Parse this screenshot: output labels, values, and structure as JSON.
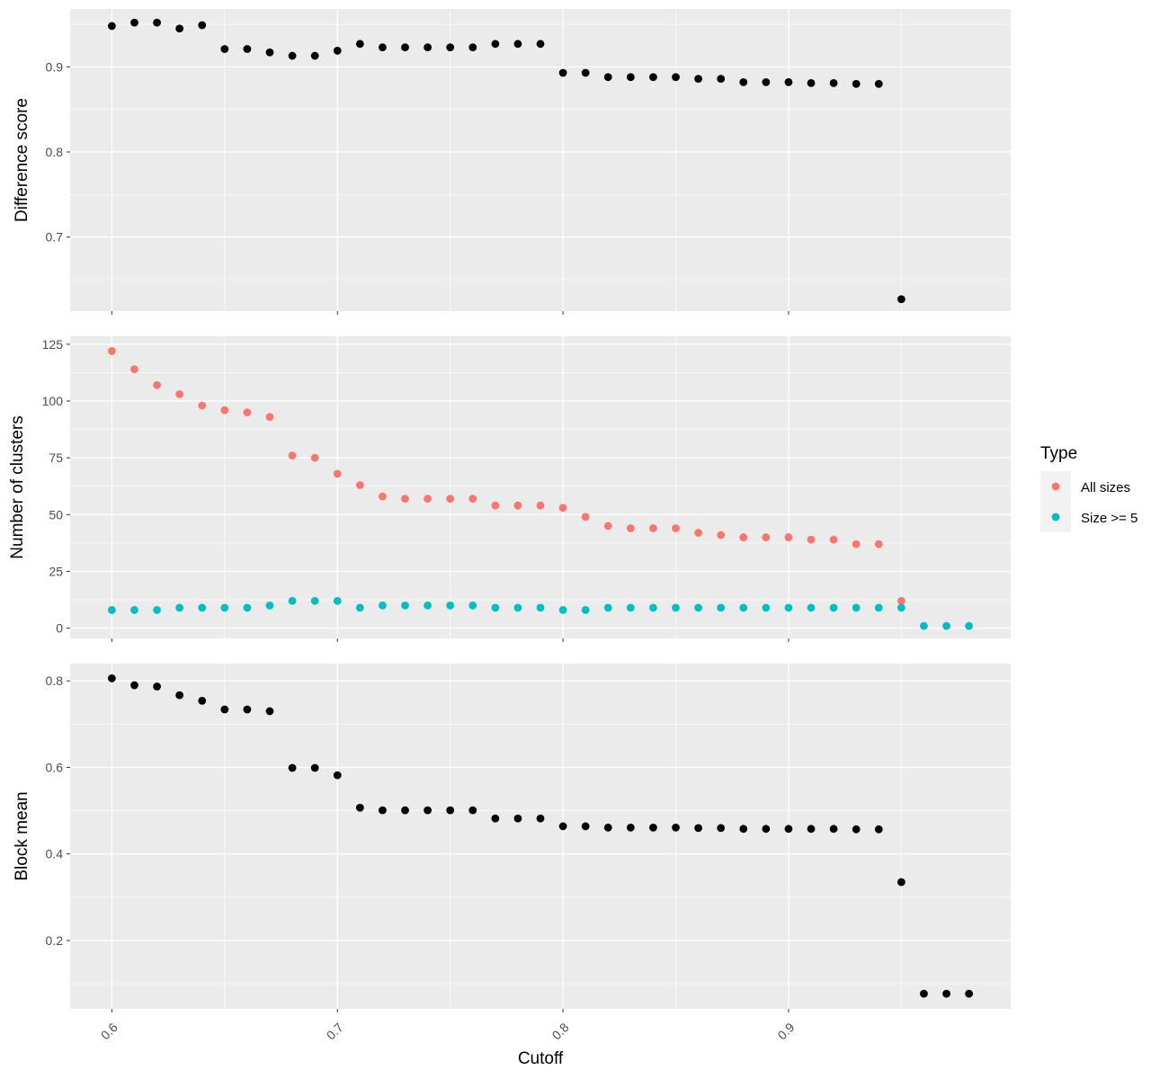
{
  "chart_data": {
    "type": "scatter",
    "xlabel": "Cutoff",
    "xlim": [
      0.5815,
      0.9985
    ],
    "x_ticks": [
      0.6,
      0.7,
      0.8,
      0.9
    ],
    "x_tick_labels": [
      "0.6",
      "0.7",
      "0.8",
      "0.9"
    ],
    "x_tick_rotation": -45,
    "grid": true,
    "background": "#EBEBEB",
    "panels": [
      {
        "name": "difference",
        "ylabel": "Difference score",
        "ylim": [
          0.613,
          0.968
        ],
        "y_ticks": [
          0.7,
          0.8,
          0.9
        ],
        "y_tick_labels": [
          "0.7",
          "0.8",
          "0.9"
        ],
        "series": [
          {
            "color": "#000000",
            "x": [
              0.6,
              0.61,
              0.62,
              0.63,
              0.64,
              0.65,
              0.66,
              0.67,
              0.68,
              0.69,
              0.7,
              0.71,
              0.72,
              0.73,
              0.74,
              0.75,
              0.76,
              0.77,
              0.78,
              0.79,
              0.8,
              0.81,
              0.82,
              0.83,
              0.84,
              0.85,
              0.86,
              0.87,
              0.88,
              0.89,
              0.9,
              0.91,
              0.92,
              0.93,
              0.94,
              0.95
            ],
            "y": [
              0.948,
              0.952,
              0.952,
              0.945,
              0.949,
              0.921,
              0.921,
              0.917,
              0.913,
              0.913,
              0.919,
              0.927,
              0.923,
              0.923,
              0.923,
              0.923,
              0.923,
              0.927,
              0.927,
              0.927,
              0.893,
              0.893,
              0.888,
              0.888,
              0.888,
              0.888,
              0.886,
              0.886,
              0.882,
              0.882,
              0.882,
              0.881,
              0.881,
              0.88,
              0.88,
              0.627
            ]
          }
        ]
      },
      {
        "name": "clusters",
        "ylabel": "Number of clusters",
        "ylim": [
          -4.5,
          128.5
        ],
        "y_ticks": [
          0,
          25,
          50,
          75,
          100,
          125
        ],
        "y_tick_labels": [
          "0",
          "25",
          "50",
          "75",
          "100",
          "125"
        ],
        "legend": {
          "title": "Type",
          "position": "right"
        },
        "series": [
          {
            "name": "All sizes",
            "color": "#F8766D",
            "x": [
              0.6,
              0.61,
              0.62,
              0.63,
              0.64,
              0.65,
              0.66,
              0.67,
              0.68,
              0.69,
              0.7,
              0.71,
              0.72,
              0.73,
              0.74,
              0.75,
              0.76,
              0.77,
              0.78,
              0.79,
              0.8,
              0.81,
              0.82,
              0.83,
              0.84,
              0.85,
              0.86,
              0.87,
              0.88,
              0.89,
              0.9,
              0.91,
              0.92,
              0.93,
              0.94,
              0.95
            ],
            "y": [
              122,
              114,
              107,
              103,
              98,
              96,
              95,
              93,
              76,
              75,
              68,
              63,
              58,
              57,
              57,
              57,
              57,
              54,
              54,
              54,
              53,
              49,
              45,
              44,
              44,
              44,
              42,
              41,
              40,
              40,
              40,
              39,
              39,
              37,
              37,
              12
            ]
          },
          {
            "name": "Size >= 5",
            "color": "#00BFC4",
            "x": [
              0.6,
              0.61,
              0.62,
              0.63,
              0.64,
              0.65,
              0.66,
              0.67,
              0.68,
              0.69,
              0.7,
              0.71,
              0.72,
              0.73,
              0.74,
              0.75,
              0.76,
              0.77,
              0.78,
              0.79,
              0.8,
              0.81,
              0.82,
              0.83,
              0.84,
              0.85,
              0.86,
              0.87,
              0.88,
              0.89,
              0.9,
              0.91,
              0.92,
              0.93,
              0.94,
              0.95,
              0.96,
              0.97,
              0.98
            ],
            "y": [
              8,
              8,
              8,
              9,
              9,
              9,
              9,
              10,
              12,
              12,
              12,
              9,
              10,
              10,
              10,
              10,
              10,
              9,
              9,
              9,
              8,
              8,
              9,
              9,
              9,
              9,
              9,
              9,
              9,
              9,
              9,
              9,
              9,
              9,
              9,
              9,
              1,
              1,
              1
            ]
          }
        ]
      },
      {
        "name": "blockmean",
        "ylabel": "Block mean",
        "ylim": [
          0.042,
          0.84
        ],
        "y_ticks": [
          0.2,
          0.4,
          0.6,
          0.8
        ],
        "y_tick_labels": [
          "0.2",
          "0.4",
          "0.6",
          "0.8"
        ],
        "series": [
          {
            "color": "#000000",
            "x": [
              0.6,
              0.61,
              0.62,
              0.63,
              0.64,
              0.65,
              0.66,
              0.67,
              0.68,
              0.69,
              0.7,
              0.71,
              0.72,
              0.73,
              0.74,
              0.75,
              0.76,
              0.77,
              0.78,
              0.79,
              0.8,
              0.81,
              0.82,
              0.83,
              0.84,
              0.85,
              0.86,
              0.87,
              0.88,
              0.89,
              0.9,
              0.91,
              0.92,
              0.93,
              0.94,
              0.95,
              0.96,
              0.97,
              0.98
            ],
            "y": [
              0.806,
              0.79,
              0.787,
              0.767,
              0.754,
              0.734,
              0.734,
              0.73,
              0.599,
              0.599,
              0.582,
              0.507,
              0.501,
              0.501,
              0.501,
              0.501,
              0.501,
              0.482,
              0.482,
              0.482,
              0.464,
              0.464,
              0.461,
              0.461,
              0.461,
              0.461,
              0.46,
              0.46,
              0.458,
              0.458,
              0.458,
              0.458,
              0.458,
              0.457,
              0.457,
              0.335,
              0.077,
              0.077,
              0.077
            ]
          }
        ]
      }
    ]
  }
}
